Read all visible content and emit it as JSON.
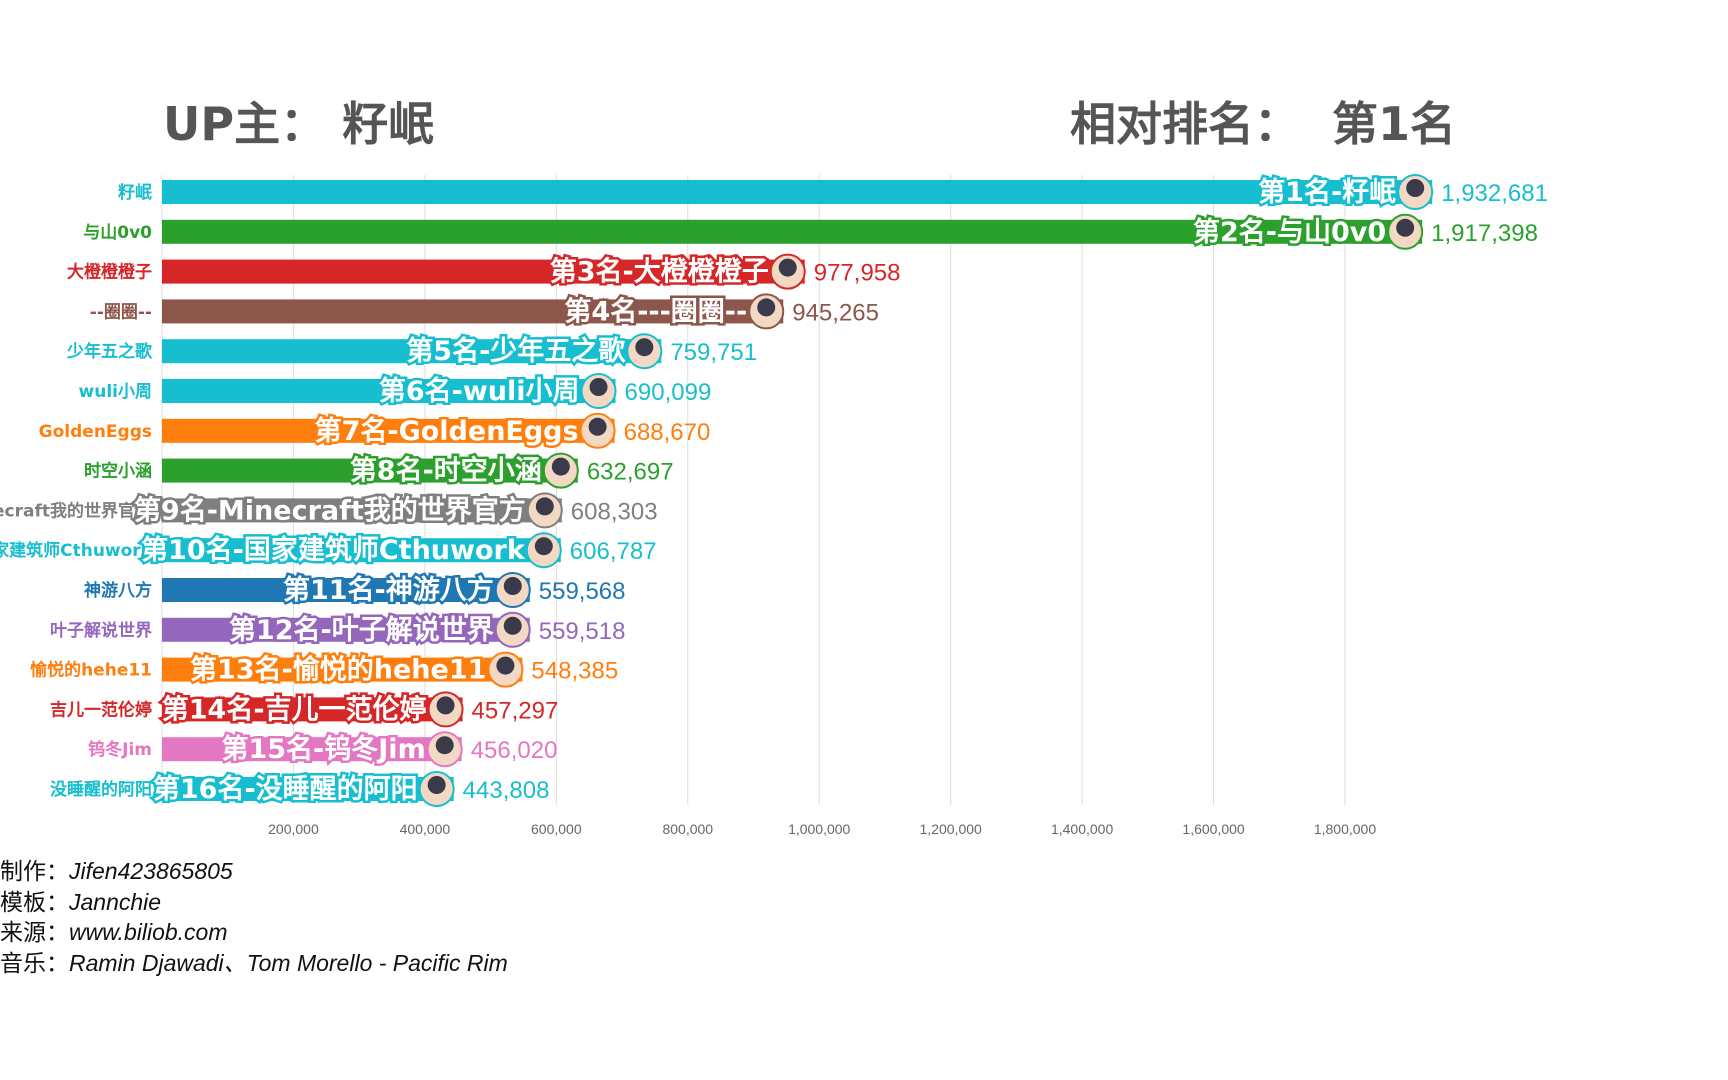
{
  "header": {
    "up_label": "UP主：",
    "up_name": "籽岷",
    "rank_label": "相对排名：",
    "rank_value": "第1名"
  },
  "chart_data": {
    "type": "bar",
    "orientation": "horizontal",
    "categories": [
      "籽岷",
      "与山0v0",
      "大橙橙橙子",
      "--圈圈--",
      "少年五之歌",
      "wuli小周",
      "GoldenEggs",
      "时空小涵",
      "Minecraft我的世界官方",
      "国家建筑师Cthuwork",
      "神游八方",
      "叶子解说世界",
      "愉悦的hehe11",
      "吉儿一范伦婷",
      "钨冬Jim",
      "没睡醒的阿阳"
    ],
    "bar_labels": [
      "第1名-籽岷",
      "第2名-与山0v0",
      "第3名-大橙橙橙子",
      "第4名---圈圈--",
      "第5名-少年五之歌",
      "第6名-wuli小周",
      "第7名-GoldenEggs",
      "第8名-时空小涵",
      "第9名-Minecraft我的世界官方",
      "第10名-国家建筑师Cthuwork",
      "第11名-神游八方",
      "第12名-叶子解说世界",
      "第13名-愉悦的hehe11",
      "第14名-吉儿一范伦婷",
      "第15名-钨冬Jim",
      "第16名-没睡醒的阿阳"
    ],
    "values": [
      1932681,
      1917398,
      977958,
      945265,
      759751,
      690099,
      688670,
      632697,
      608303,
      606787,
      559568,
      559518,
      548385,
      457297,
      456020,
      443808
    ],
    "value_labels": [
      "1,932,681",
      "1,917,398",
      "977,958",
      "945,265",
      "759,751",
      "690,099",
      "688,670",
      "632,697",
      "608,303",
      "606,787",
      "559,568",
      "559,518",
      "548,385",
      "457,297",
      "456,020",
      "443,808"
    ],
    "colors": [
      "#17becf",
      "#2ca02c",
      "#d62728",
      "#8c564b",
      "#17becf",
      "#17becf",
      "#ff7f0e",
      "#2ca02c",
      "#7f7f7f",
      "#17becf",
      "#1f77b4",
      "#9467bd",
      "#ff7f0e",
      "#d62728",
      "#e377c2",
      "#17becf"
    ],
    "xticks": [
      200000,
      400000,
      600000,
      800000,
      1000000,
      1200000,
      1400000,
      1600000,
      1800000
    ],
    "xtick_labels": [
      "200,000",
      "400,000",
      "600,000",
      "800,000",
      "1,000,000",
      "1,200,000",
      "1,400,000",
      "1,600,000",
      "1,800,000"
    ],
    "xlim": [
      0,
      2000000
    ],
    "grid": true
  },
  "footer": [
    {
      "label": "制作：",
      "value": "Jifen423865805"
    },
    {
      "label": "模板：",
      "value": "Jannchie"
    },
    {
      "label": "来源：",
      "value": "www.biliob.com"
    },
    {
      "label": "音乐：",
      "value": "Ramin Djawadi、Tom Morello - Pacific Rim"
    }
  ]
}
